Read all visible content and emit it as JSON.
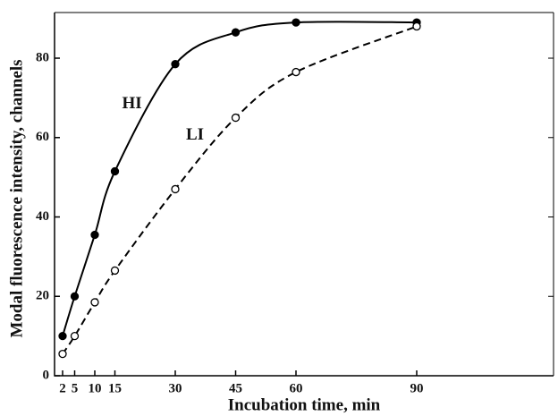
{
  "chart_data": {
    "type": "line",
    "x_label": "Incubation time, min",
    "y_label": "Modal fluorescence intensity, channels",
    "xlim": [
      0,
      124
    ],
    "ylim": [
      0,
      91.5
    ],
    "xticks": [
      2,
      5,
      10,
      15,
      30,
      45,
      60,
      90
    ],
    "yticks": [
      0,
      20,
      40,
      60,
      80
    ],
    "x": [
      2,
      5,
      10,
      15,
      30,
      45,
      60,
      90
    ],
    "series": [
      {
        "name": "HI",
        "color": "#000000",
        "dashed": false,
        "filled": true,
        "values": [
          10,
          20,
          35.5,
          51.5,
          78.5,
          86.5,
          89,
          89
        ]
      },
      {
        "name": "LI",
        "color": "#000000",
        "dashed": true,
        "filled": false,
        "values": [
          5.5,
          10,
          18.5,
          26.5,
          47,
          65,
          76.5,
          88
        ]
      }
    ]
  }
}
